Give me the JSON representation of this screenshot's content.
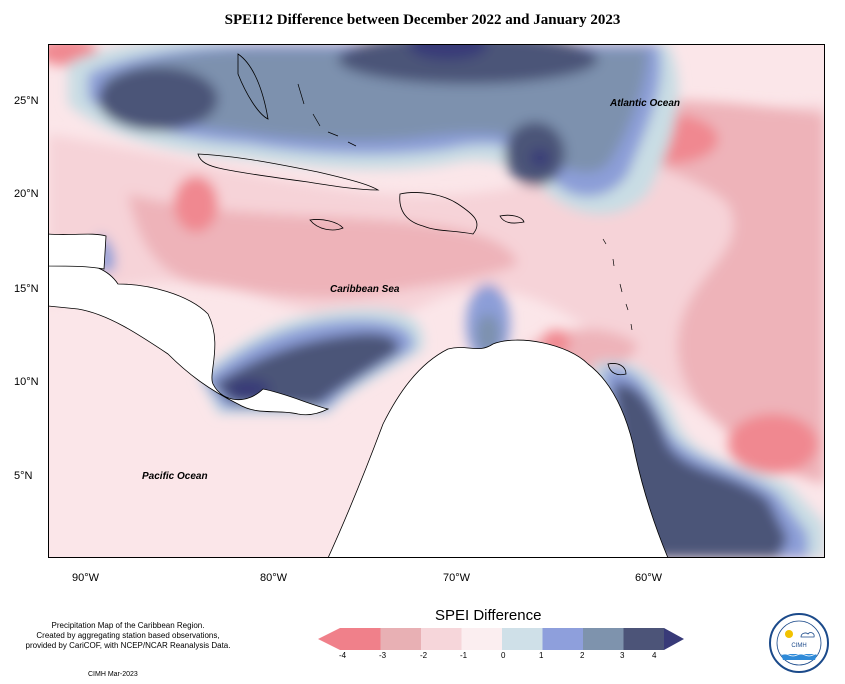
{
  "title": "SPEI12 Difference between December 2022 and January 2023",
  "map": {
    "labels": {
      "atlantic": "Atlantic Ocean",
      "caribbean": "Caribbean Sea",
      "pacific": "Pacific Ocean"
    },
    "lat_ticks": [
      "25°N",
      "20°N",
      "15°N",
      "10°N",
      "5°N"
    ],
    "lon_ticks": [
      "90°W",
      "80°W",
      "70°W",
      "60°W"
    ]
  },
  "legend": {
    "title": "SPEI Difference",
    "ticks": [
      "-4",
      "-3",
      "-2",
      "-1",
      "0",
      "1",
      "2",
      "3",
      "4"
    ],
    "colors": [
      "#f0808a",
      "#e8b0b4",
      "#f6d6da",
      "#fbeef0",
      "#cfe0e8",
      "#8e9fdc",
      "#7e93ad",
      "#4c5478"
    ]
  },
  "notes": {
    "line1": "Precipitation Map of the Caribbean Region.",
    "line2": "Created by aggregating station based observations,",
    "line3": "provided by CariCOF, with NCEP/NCAR Reanalysis Data.",
    "credit": "CIMH Mar-2023"
  },
  "logo": {
    "text": "CIMH"
  }
}
